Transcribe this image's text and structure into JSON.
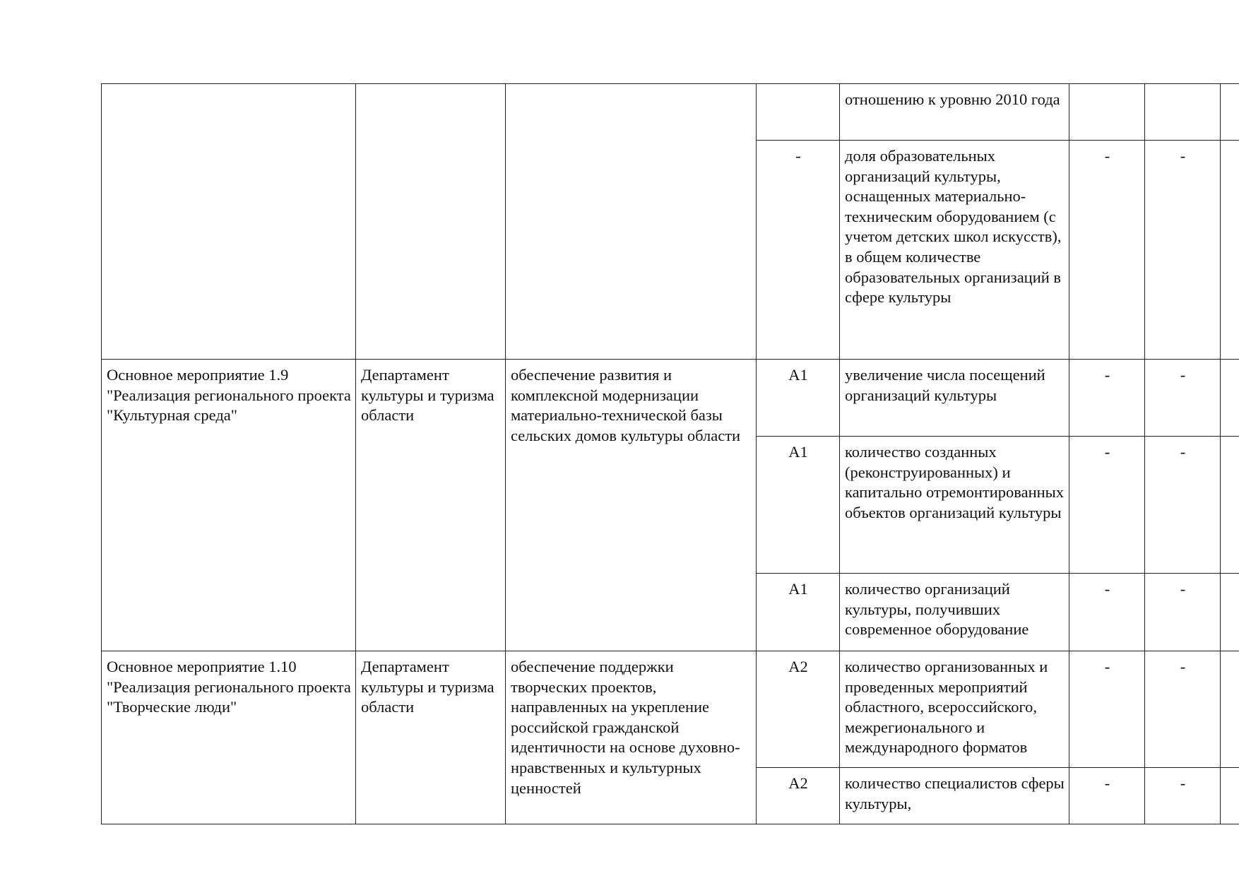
{
  "rows": [
    {
      "code": "",
      "indicator": "отношению к уровню 2010 года",
      "v1": "",
      "v2": ""
    },
    {
      "code": "-",
      "indicator": "доля образовательных организаций культуры, оснащенных материально-техническим оборудованием (с учетом детских школ искусств), в общем количестве образовательных организаций в сфере культуры",
      "v1": "-",
      "v2": "-"
    }
  ],
  "groups": [
    {
      "measure": "Основное мероприятие 1.9 \"Реализация регионального проекта \"Культурная среда\"",
      "executor": "Департамент культуры и туризма области",
      "result": "обеспечение развития и комплексной модернизации материально-технической базы сельских домов культуры области",
      "rows": [
        {
          "code": "А1",
          "indicator": "увеличение числа посещений организаций культуры",
          "v1": "-",
          "v2": "-"
        },
        {
          "code": "А1",
          "indicator": "количество созданных (реконструированных) и капитально отремонтированных объектов организаций культуры",
          "v1": "-",
          "v2": "-"
        },
        {
          "code": "А1",
          "indicator": "количество организаций культуры, получивших современное оборудование",
          "v1": "-",
          "v2": "-"
        }
      ]
    },
    {
      "measure": "Основное мероприятие 1.10 \"Реализация регионального проекта \"Творческие люди\"",
      "executor": "Департамент культуры и туризма области",
      "result": "обеспечение поддержки творческих проектов, направленных на укрепление российской гражданской идентичности на основе духовно-нравственных и культурных ценностей",
      "rows": [
        {
          "code": "А2",
          "indicator": "количество организованных и проведенных мероприятий областного, всероссийского, межрегионального и международного форматов",
          "v1": "-",
          "v2": "-"
        },
        {
          "code": "А2",
          "indicator": "количество специалистов сферы культуры,",
          "v1": "-",
          "v2": "-"
        }
      ]
    }
  ]
}
